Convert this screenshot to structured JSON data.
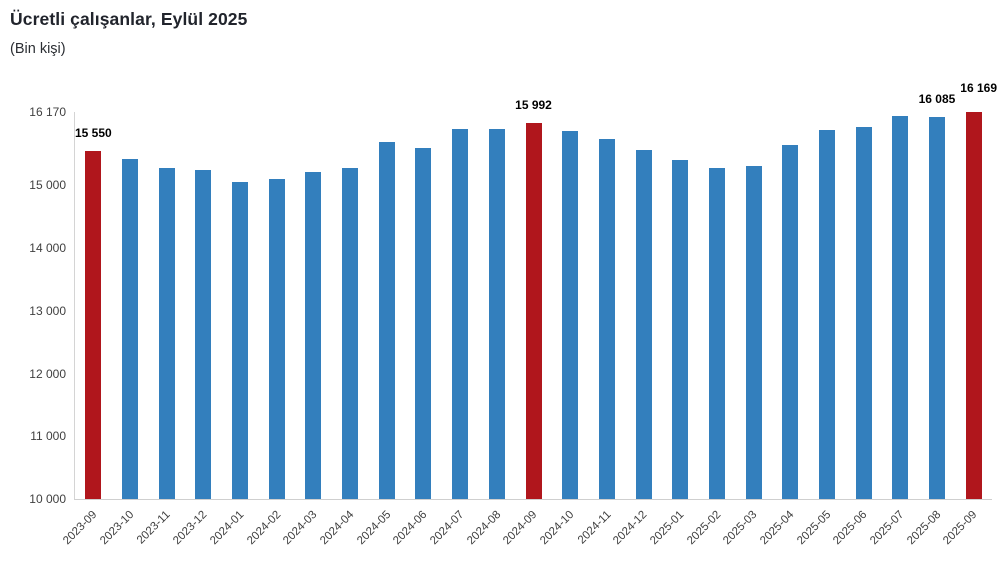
{
  "title": "Ücretli çalışanlar, Eylül 2025",
  "subtitle": "(Bin kişi)",
  "chart_data": {
    "type": "bar",
    "title": "Ücretli çalışanlar, Eylül 2025",
    "subtitle": "(Bin kişi)",
    "unit": "Bin kişi",
    "categories": [
      "2023-09",
      "2023-10",
      "2023-11",
      "2023-12",
      "2024-01",
      "2024-02",
      "2024-03",
      "2024-04",
      "2024-05",
      "2024-06",
      "2024-07",
      "2024-08",
      "2024-09",
      "2024-10",
      "2024-11",
      "2024-12",
      "2025-01",
      "2025-02",
      "2025-03",
      "2025-04",
      "2025-05",
      "2025-06",
      "2025-07",
      "2025-08",
      "2025-09"
    ],
    "values": [
      15550,
      15420,
      15280,
      15240,
      15050,
      15110,
      15220,
      15280,
      15695,
      15600,
      15905,
      15900,
      15992,
      15860,
      15735,
      15570,
      15400,
      15280,
      15310,
      15650,
      15880,
      15930,
      16110,
      16085,
      16169
    ],
    "highlighted_indices": [
      0,
      12,
      24
    ],
    "data_labels": [
      {
        "index": 0,
        "text": "15 550",
        "raised": false
      },
      {
        "index": 12,
        "text": "15 992",
        "raised": false
      },
      {
        "index": 23,
        "text": "16 085",
        "raised": false
      },
      {
        "index": 24,
        "text": "16 169",
        "raised": true
      }
    ],
    "yticks": [
      {
        "value": 16170,
        "label": "16 170"
      },
      {
        "value": 15000,
        "label": "15 000"
      },
      {
        "value": 14000,
        "label": "14 000"
      },
      {
        "value": 13000,
        "label": "13 000"
      },
      {
        "value": 12000,
        "label": "12 000"
      },
      {
        "value": 11000,
        "label": "11 000"
      },
      {
        "value": 10000,
        "label": "10 000"
      }
    ],
    "ylim": [
      10000,
      16170
    ],
    "grid": false,
    "legend_position": "none",
    "colors": {
      "bar": "#337FBD",
      "highlight": "#B0161C",
      "axis_line": "#D0D0D0",
      "tick_text": "#404040",
      "data_label_text": "#000000"
    }
  }
}
